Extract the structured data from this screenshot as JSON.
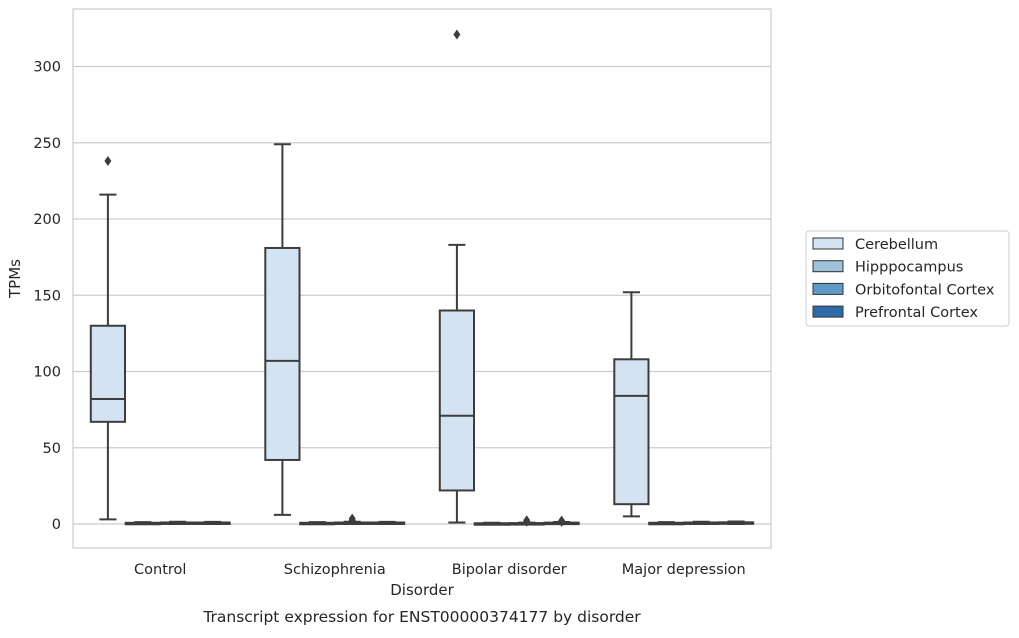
{
  "chart_data": {
    "type": "box",
    "title": "",
    "caption": "Transcript expression for ENST00000374177 by disorder",
    "xlabel": "Disorder",
    "ylabel": "TPMs",
    "ylim": [
      -15,
      335
    ],
    "yticks": [
      0,
      50,
      100,
      150,
      200,
      250,
      300
    ],
    "grid": "horizontal",
    "legend_position": "right",
    "categories": [
      "Control",
      "Schizophrenia",
      "Bipolar disorder",
      "Major depression"
    ],
    "series": [
      {
        "name": "Cerebellum",
        "color": "#d4e3f1",
        "boxes": [
          {
            "whisker_low": 3,
            "q1": 67,
            "median": 82,
            "q3": 130,
            "whisker_high": 216,
            "outliers": [
              238
            ]
          },
          {
            "whisker_low": 6,
            "q1": 42,
            "median": 107,
            "q3": 181,
            "whisker_high": 249,
            "outliers": []
          },
          {
            "whisker_low": 1,
            "q1": 22,
            "median": 71,
            "q3": 140,
            "whisker_high": 183,
            "outliers": [
              321
            ]
          },
          {
            "whisker_low": 5,
            "q1": 13,
            "median": 84,
            "q3": 108,
            "whisker_high": 152,
            "outliers": []
          }
        ]
      },
      {
        "name": "Hipppocampus",
        "color": "#9ec2da",
        "boxes": [
          {
            "whisker_low": 0,
            "q1": 0.2,
            "median": 0.5,
            "q3": 0.8,
            "whisker_high": 1.2,
            "outliers": []
          },
          {
            "whisker_low": 0,
            "q1": 0.2,
            "median": 0.5,
            "q3": 0.8,
            "whisker_high": 1.2,
            "outliers": []
          },
          {
            "whisker_low": 0,
            "q1": 0.1,
            "median": 0.3,
            "q3": 0.5,
            "whisker_high": 0.8,
            "outliers": []
          },
          {
            "whisker_low": 0,
            "q1": 0.2,
            "median": 0.5,
            "q3": 0.8,
            "whisker_high": 1.2,
            "outliers": []
          }
        ]
      },
      {
        "name": "Orbitofontal Cortex",
        "color": "#5f9ac6",
        "boxes": [
          {
            "whisker_low": 0,
            "q1": 0.3,
            "median": 0.7,
            "q3": 1.0,
            "whisker_high": 1.5,
            "outliers": []
          },
          {
            "whisker_low": 0,
            "q1": 0.3,
            "median": 0.7,
            "q3": 1.0,
            "whisker_high": 1.5,
            "outliers": [
              3.5,
              2.5
            ]
          },
          {
            "whisker_low": 0,
            "q1": 0.1,
            "median": 0.3,
            "q3": 0.6,
            "whisker_high": 0.9,
            "outliers": [
              2.5,
              1.5
            ]
          },
          {
            "whisker_low": 0,
            "q1": 0.3,
            "median": 0.7,
            "q3": 1.0,
            "whisker_high": 1.5,
            "outliers": []
          }
        ]
      },
      {
        "name": "Prefrontal Cortex",
        "color": "#2e6aa8",
        "boxes": [
          {
            "whisker_low": 0,
            "q1": 0.3,
            "median": 0.6,
            "q3": 1.0,
            "whisker_high": 1.4,
            "outliers": []
          },
          {
            "whisker_low": 0,
            "q1": 0.3,
            "median": 0.6,
            "q3": 1.0,
            "whisker_high": 1.4,
            "outliers": []
          },
          {
            "whisker_low": 0,
            "q1": 0.2,
            "median": 0.5,
            "q3": 0.9,
            "whisker_high": 1.3,
            "outliers": [
              2.2,
              1.4
            ]
          },
          {
            "whisker_low": 0,
            "q1": 0.3,
            "median": 0.7,
            "q3": 1.1,
            "whisker_high": 1.6,
            "outliers": []
          }
        ]
      }
    ]
  }
}
